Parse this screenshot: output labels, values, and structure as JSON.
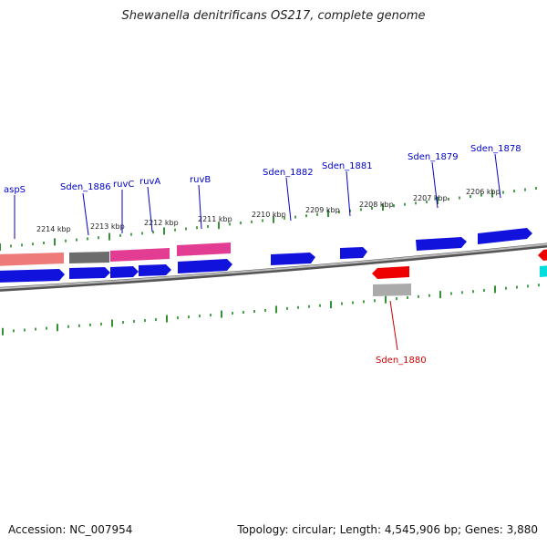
{
  "title": "Shewanella denitrificans OS217, complete genome",
  "accession_text": "Accession: NC_007954",
  "summary_text": "Topology: circular; Length: 4,545,906 bp; Genes: 3,880",
  "colors": {
    "gene_label": "#0000cc",
    "gene_label_reverse": "#cc0000",
    "tick": "#007700",
    "backbone": "#777777",
    "forward_gene": "#0000ee",
    "reverse_gene": "#ee0000"
  },
  "ruler_labels": [
    "2214 kbp",
    "2213 kbp",
    "2212 kbp",
    "2211 kbp",
    "2210 kbp",
    "2209 kbp",
    "2208 kbp",
    "2207 kbp",
    "2206 kbp"
  ],
  "gene_labels": [
    "aspS",
    "Sden_1886",
    "ruvC",
    "ruvA",
    "ruvB",
    "Sden_1882",
    "Sden_1881",
    "Sden_1879",
    "Sden_1878",
    "Sden_1880"
  ]
}
